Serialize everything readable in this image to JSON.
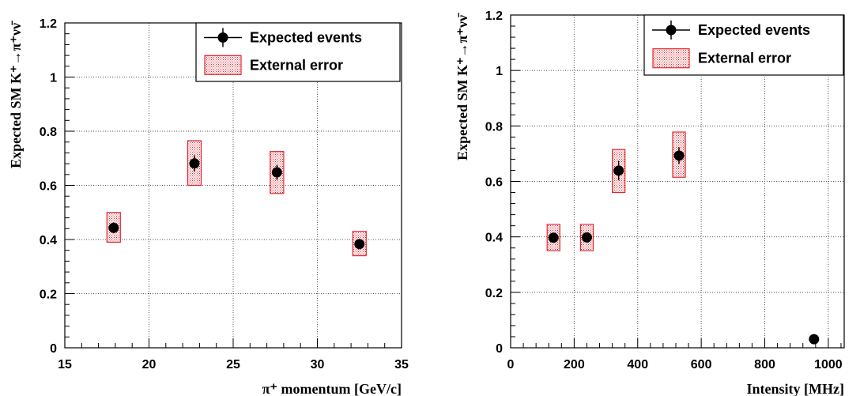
{
  "chart_data": [
    {
      "type": "scatter",
      "title": "",
      "xlabel": "π⁺ momentum [GeV/c]",
      "ylabel": "Expected SM K⁺→π⁺νν̄",
      "xlim": [
        15,
        35
      ],
      "ylim": [
        0,
        1.2
      ],
      "xticks": [
        "15",
        "20",
        "25",
        "30",
        "35"
      ],
      "yticks": [
        "0",
        "0.2",
        "0.4",
        "0.6",
        "0.8",
        "1",
        "1.2"
      ],
      "grid": true,
      "legend_position": "top-right",
      "series": [
        {
          "name": "Expected events",
          "x": [
            17.9,
            22.7,
            27.6,
            32.5
          ],
          "y": [
            0.443,
            0.681,
            0.648,
            0.383
          ],
          "stat_err": [
            0.02,
            0.03,
            0.028,
            0.018
          ]
        },
        {
          "name": "External error",
          "x": [
            17.9,
            22.7,
            27.6,
            32.5
          ],
          "low": [
            0.39,
            0.6,
            0.57,
            0.34
          ],
          "high": [
            0.5,
            0.765,
            0.725,
            0.43
          ],
          "half_width": 0.4
        }
      ]
    },
    {
      "type": "scatter",
      "title": "",
      "xlabel": "Intensity [MHz]",
      "ylabel": "Expected SM K⁺→π⁺νν̄",
      "xlim": [
        0,
        1050
      ],
      "ylim": [
        0,
        1.2
      ],
      "xticks": [
        "0",
        "200",
        "400",
        "600",
        "800",
        "1000"
      ],
      "yticks": [
        "0",
        "0.2",
        "0.4",
        "0.6",
        "0.8",
        "1",
        "1.2"
      ],
      "grid": true,
      "legend_position": "top-right",
      "series": [
        {
          "name": "Expected events",
          "x": [
            135,
            240,
            340,
            530,
            955
          ],
          "y": [
            0.397,
            0.398,
            0.639,
            0.693,
            0.031
          ],
          "stat_err": [
            0.012,
            0.012,
            0.035,
            0.03,
            0.008
          ]
        },
        {
          "name": "External error",
          "x": [
            135,
            240,
            340,
            530,
            955
          ],
          "low": [
            0.35,
            0.35,
            0.56,
            0.615,
            0.0
          ],
          "high": [
            0.445,
            0.445,
            0.715,
            0.778,
            0.0
          ],
          "half_width": 20
        }
      ]
    }
  ]
}
